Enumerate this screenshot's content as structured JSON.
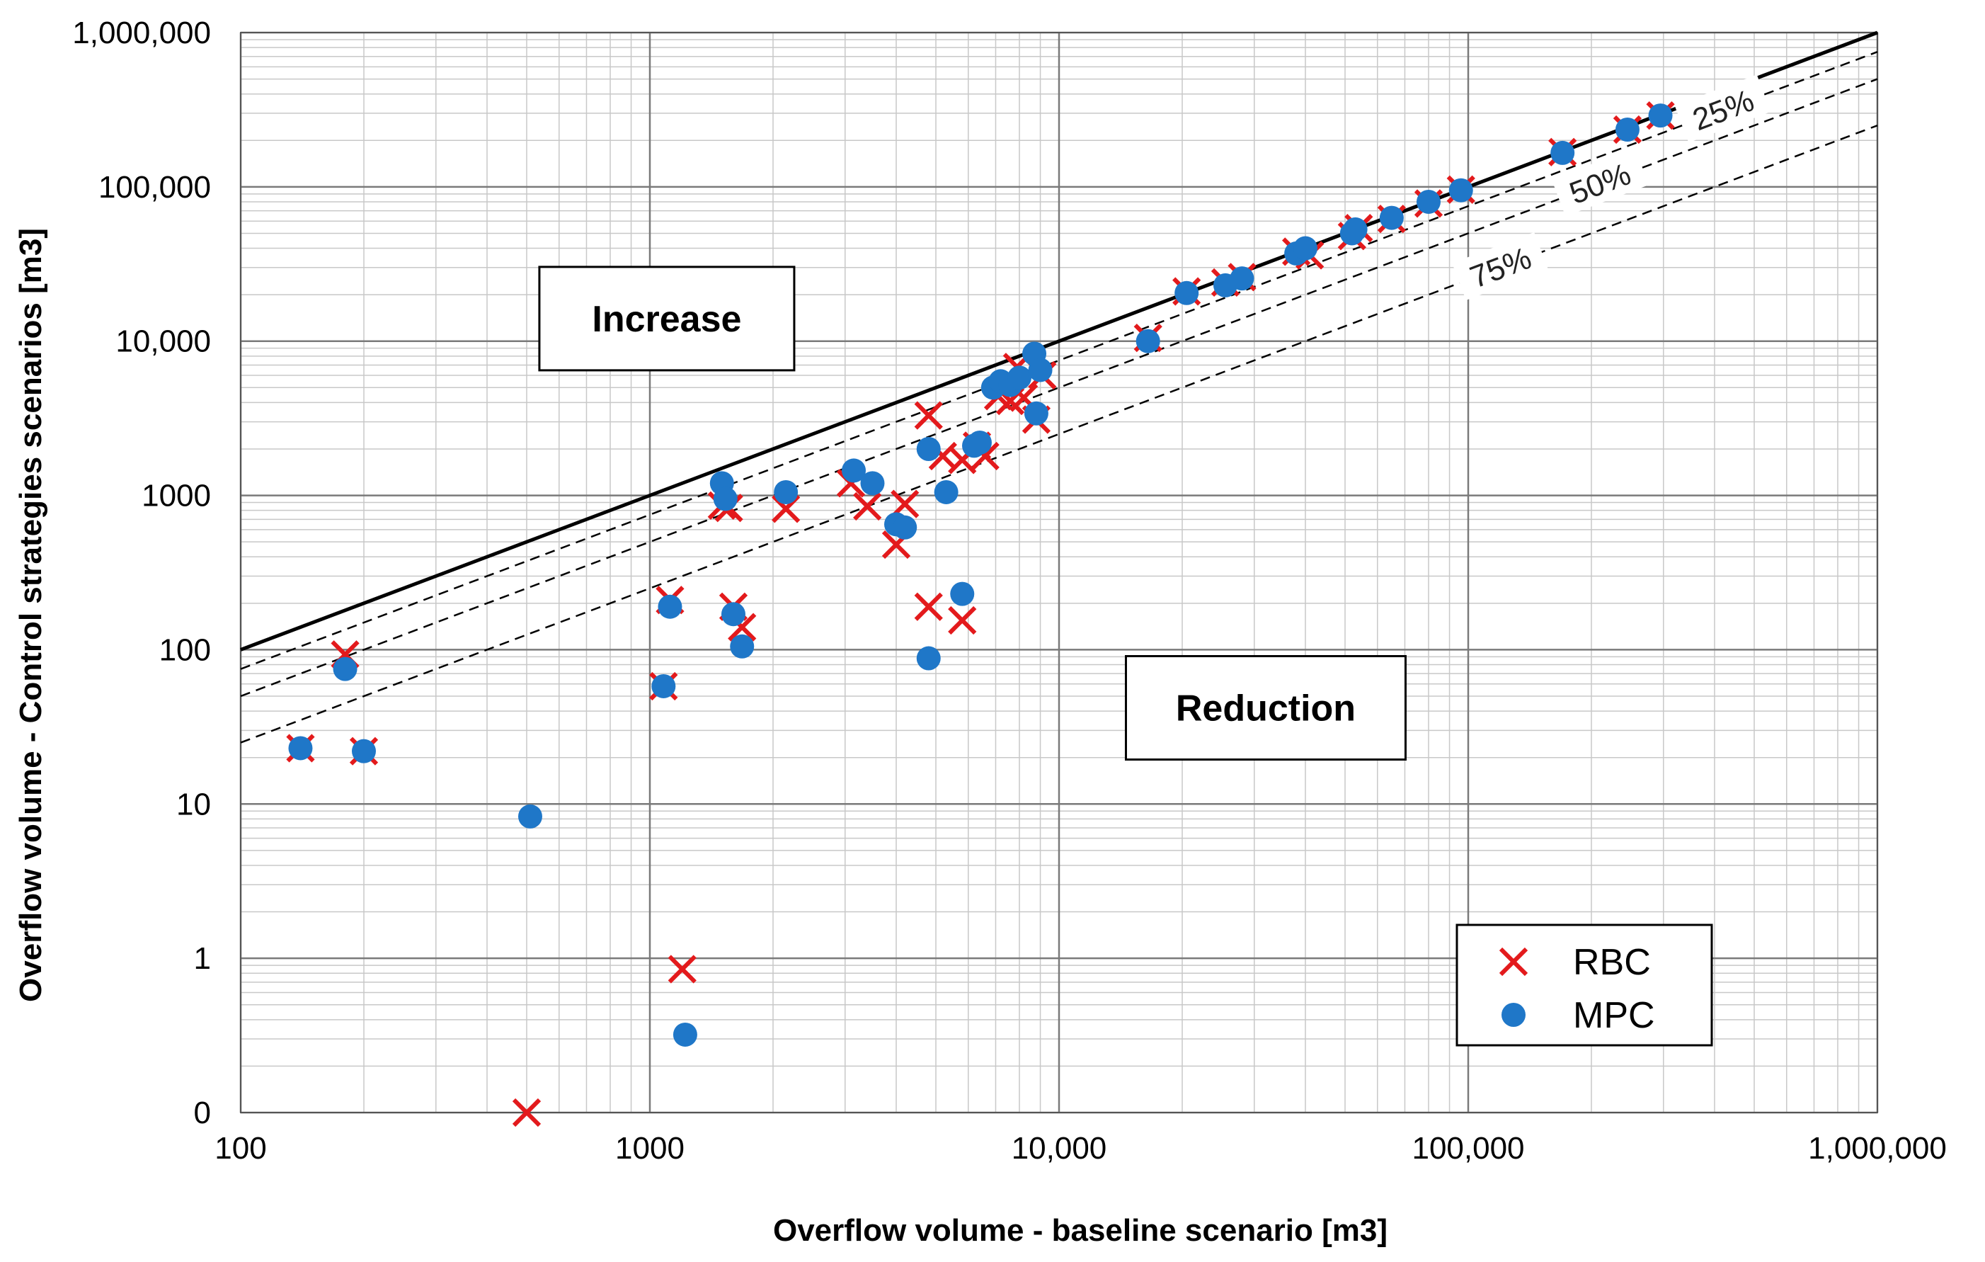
{
  "chart_data": {
    "type": "scatter",
    "xscale": "log",
    "yscale": "log",
    "xlabel": "Overflow volume - baseline scenario [m3]",
    "ylabel": "Overflow volume - Control strategies scenarios [m3]",
    "xlim": [
      100,
      1000000
    ],
    "ylim": [
      0.1,
      1000000
    ],
    "xticks": [
      100,
      1000,
      10000,
      100000,
      1000000
    ],
    "xtick_labels": [
      "100",
      "1000",
      "10,000",
      "100,000",
      "1,000,000"
    ],
    "yticks": [
      0.1,
      1,
      10,
      100,
      1000,
      10000,
      100000,
      1000000
    ],
    "ytick_labels": [
      "0",
      "1",
      "10",
      "100",
      "1000",
      "10,000",
      "100,000",
      "1,000,000"
    ],
    "grid": true,
    "reference_lines": [
      {
        "name": "0%",
        "ratio": 1.0,
        "style": "solid"
      },
      {
        "name": "25%",
        "ratio": 0.75,
        "style": "dashed",
        "label": "25%",
        "label_x": 420000
      },
      {
        "name": "50%",
        "ratio": 0.5,
        "style": "dashed",
        "label": "50%",
        "label_x": 210000
      },
      {
        "name": "75%",
        "ratio": 0.25,
        "style": "dashed",
        "label": "75%",
        "label_x": 120000
      }
    ],
    "annotations": [
      {
        "text": "Increase",
        "x": 1100,
        "y": 14000
      },
      {
        "text": "Reduction",
        "x": 32000,
        "y": 42
      }
    ],
    "legend_position": "bottom-right",
    "series": [
      {
        "name": "RBC",
        "marker": "x",
        "color": "#e31a1c",
        "points": [
          [
            140,
            23
          ],
          [
            180,
            93
          ],
          [
            200,
            22
          ],
          [
            500,
            0.1
          ],
          [
            1080,
            58
          ],
          [
            1120,
            210
          ],
          [
            1200,
            0.85
          ],
          [
            1500,
            860
          ],
          [
            1560,
            830
          ],
          [
            1600,
            190
          ],
          [
            1680,
            140
          ],
          [
            2150,
            820
          ],
          [
            3100,
            1200
          ],
          [
            3400,
            850
          ],
          [
            4000,
            480
          ],
          [
            4200,
            880
          ],
          [
            4800,
            3300
          ],
          [
            4800,
            190
          ],
          [
            5200,
            1800
          ],
          [
            5800,
            1700
          ],
          [
            5800,
            155
          ],
          [
            6300,
            2100
          ],
          [
            6600,
            1800
          ],
          [
            7100,
            4400
          ],
          [
            7600,
            4100
          ],
          [
            7900,
            6800
          ],
          [
            8200,
            4300
          ],
          [
            8800,
            3100
          ],
          [
            9100,
            6000
          ],
          [
            16500,
            10500
          ],
          [
            20500,
            21000
          ],
          [
            25500,
            24000
          ],
          [
            28000,
            26000
          ],
          [
            38000,
            38000
          ],
          [
            41000,
            36000
          ],
          [
            52000,
            48000
          ],
          [
            54000,
            54000
          ],
          [
            65000,
            62000
          ],
          [
            80000,
            78000
          ],
          [
            96000,
            96000
          ],
          [
            170000,
            168000
          ],
          [
            245000,
            235000
          ],
          [
            295000,
            290000
          ]
        ]
      },
      {
        "name": "MPC",
        "marker": "o",
        "color": "#1f77c8",
        "points": [
          [
            140,
            23
          ],
          [
            180,
            75
          ],
          [
            200,
            22
          ],
          [
            510,
            8.3
          ],
          [
            1080,
            58
          ],
          [
            1120,
            190
          ],
          [
            1220,
            0.32
          ],
          [
            1500,
            1200
          ],
          [
            1530,
            950
          ],
          [
            1600,
            170
          ],
          [
            1680,
            105
          ],
          [
            2150,
            1050
          ],
          [
            3150,
            1450
          ],
          [
            3500,
            1200
          ],
          [
            4000,
            650
          ],
          [
            4200,
            620
          ],
          [
            4800,
            2000
          ],
          [
            4800,
            88
          ],
          [
            5300,
            1050
          ],
          [
            5800,
            230
          ],
          [
            6200,
            2100
          ],
          [
            6400,
            2200
          ],
          [
            6900,
            5000
          ],
          [
            7200,
            5500
          ],
          [
            7600,
            5200
          ],
          [
            8000,
            5800
          ],
          [
            8700,
            8300
          ],
          [
            8800,
            3400
          ],
          [
            9000,
            6500
          ],
          [
            16500,
            10000
          ],
          [
            20500,
            20500
          ],
          [
            25500,
            23000
          ],
          [
            28000,
            25500
          ],
          [
            38000,
            37000
          ],
          [
            40000,
            40000
          ],
          [
            52000,
            50000
          ],
          [
            53000,
            53000
          ],
          [
            65000,
            63000
          ],
          [
            80000,
            80000
          ],
          [
            96000,
            95000
          ],
          [
            170000,
            166000
          ],
          [
            245000,
            235000
          ],
          [
            295000,
            290000
          ]
        ]
      }
    ]
  }
}
